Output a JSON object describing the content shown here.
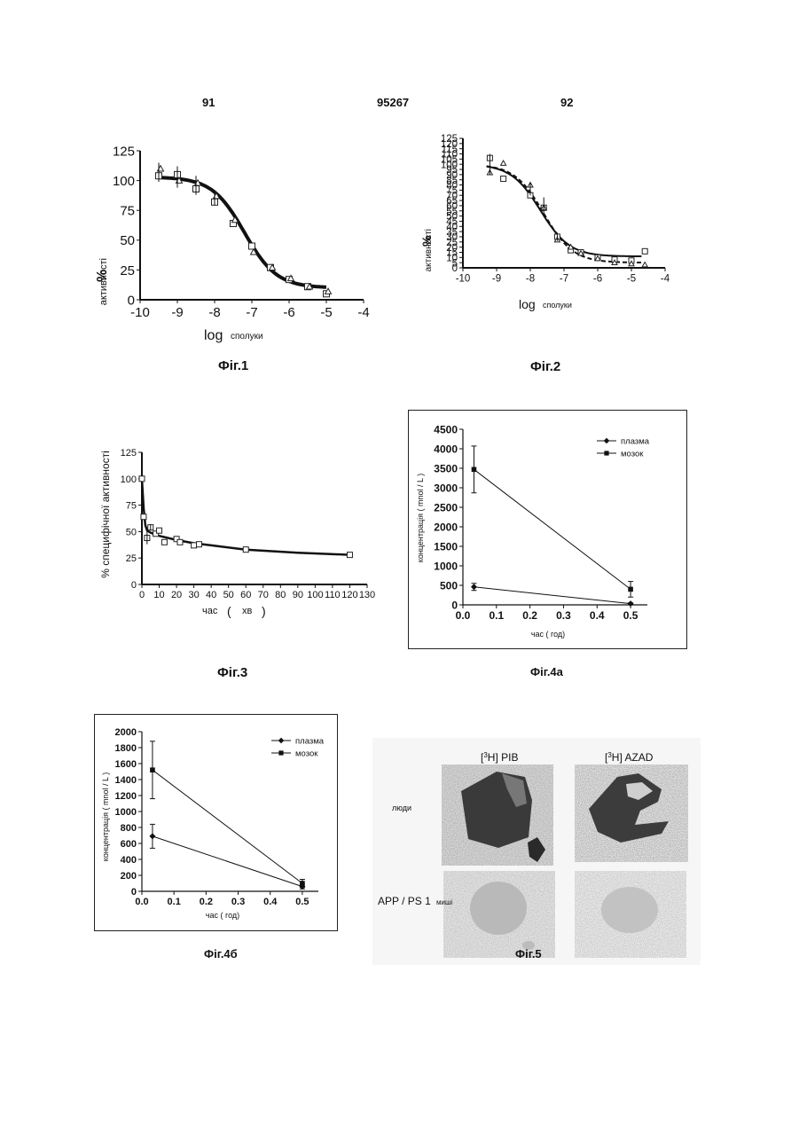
{
  "header": {
    "left": "91",
    "center": "95267",
    "right": "92"
  },
  "figures": {
    "fig1": {
      "caption": "Фіг.1"
    },
    "fig2": {
      "caption": "Фіг.2"
    },
    "fig3": {
      "caption": "Фіг.3"
    },
    "fig4a": {
      "caption": "Фіг.4а"
    },
    "fig4b": {
      "caption": "Фіг.4б"
    },
    "fig5": {
      "caption": "Фіг.5",
      "col_left": "[3H] PIB",
      "col_right": "[3H] AZAD",
      "row_top": "люди",
      "row_bottom": "APP / PS 1",
      "row_bottom_suffix": "миші"
    }
  },
  "chart_data": [
    {
      "id": "fig1",
      "type": "line",
      "ylabel_main": "%",
      "ylabel": "активності",
      "xlabel_main": "log",
      "xlabel": "сполуки",
      "xlim": [
        -10,
        -4
      ],
      "ylim": [
        0,
        125
      ],
      "xticks": [
        -10,
        -9,
        -8,
        -7,
        -6,
        -5,
        -4
      ],
      "yticks": [
        0,
        25,
        50,
        75,
        100,
        125
      ],
      "series": [
        {
          "marker": "square",
          "x": [
            -9.5,
            -9,
            -8.5,
            -8,
            -7.5,
            -7,
            -6.5,
            -6,
            -5.5,
            -5
          ],
          "y": [
            104,
            105,
            93,
            82,
            64,
            45,
            27,
            17,
            11,
            5
          ]
        },
        {
          "marker": "triangle",
          "x": [
            -9.5,
            -9,
            -8.5,
            -8,
            -7.5,
            -7,
            -6.5,
            -6,
            -5.5,
            -5
          ],
          "y": [
            110,
            100,
            98,
            87,
            67,
            40,
            27,
            18,
            11,
            7
          ]
        }
      ],
      "fit": {
        "top": 103,
        "bottom": 10,
        "logec50": -7.2,
        "hill": 1.0
      }
    },
    {
      "id": "fig2",
      "type": "line",
      "ylabel_main": "%",
      "ylabel": "активності",
      "xlabel_main": "log",
      "xlabel": "сполуки",
      "xlim": [
        -10,
        -4
      ],
      "ylim": [
        0,
        125
      ],
      "xticks": [
        -10,
        -9,
        -8,
        -7,
        -6,
        -5,
        -4
      ],
      "yticks": [
        0,
        5,
        10,
        15,
        20,
        25,
        30,
        35,
        40,
        45,
        50,
        55,
        60,
        65,
        70,
        75,
        80,
        85,
        90,
        95,
        100,
        105,
        110,
        115,
        120,
        125
      ],
      "series": [
        {
          "marker": "square",
          "x": [
            -9.2,
            -8.8,
            -8,
            -7.6,
            -7.2,
            -6.8,
            -6.5,
            -6,
            -5.5,
            -5,
            -4.6
          ],
          "y": [
            106,
            86,
            70,
            58,
            30,
            17,
            15,
            10,
            8,
            7,
            16
          ]
        },
        {
          "marker": "triangle",
          "x": [
            -9.2,
            -8.8,
            -8,
            -7.6,
            -7.2,
            -6.8,
            -6.5,
            -6,
            -5.5,
            -5,
            -4.6
          ],
          "y": [
            92,
            101,
            80,
            58,
            27,
            20,
            14,
            9,
            5,
            4,
            3
          ]
        }
      ],
      "fit_solid": {
        "top": 100,
        "bottom": 11,
        "logec50": -7.7,
        "hill": 1.0
      },
      "fit_dashed": {
        "top": 100,
        "bottom": 5,
        "logec50": -7.6,
        "hill": 1.0
      }
    },
    {
      "id": "fig3",
      "type": "line",
      "ylabel": "% специфічної активності",
      "xlabel": "час",
      "xlabel_unit": "хв",
      "xlim": [
        0,
        130
      ],
      "ylim": [
        0,
        125
      ],
      "xticks": [
        0,
        10,
        20,
        30,
        40,
        50,
        60,
        70,
        80,
        90,
        100,
        110,
        120,
        130
      ],
      "yticks": [
        0,
        25,
        50,
        75,
        100,
        125
      ],
      "series": [
        {
          "marker": "square",
          "x": [
            0,
            1,
            3,
            5,
            8,
            10,
            13,
            20,
            22,
            30,
            33,
            60,
            120
          ],
          "y": [
            100,
            64,
            44,
            54,
            48,
            51,
            40,
            43,
            40,
            37,
            38,
            33,
            28
          ]
        }
      ],
      "curve": {
        "x": [
          0,
          1,
          2,
          3,
          5,
          10,
          20,
          30,
          40,
          60,
          90,
          120
        ],
        "y": [
          100,
          72,
          56,
          51,
          49,
          46,
          42,
          39,
          37,
          33,
          30,
          28
        ]
      }
    },
    {
      "id": "fig4a",
      "type": "line",
      "ylabel": "концентрація ( mnol / L )",
      "xlabel": "час ( год)",
      "xlim": [
        0,
        0.55
      ],
      "ylim": [
        0,
        4500
      ],
      "xticks": [
        0.0,
        0.1,
        0.2,
        0.3,
        0.4,
        0.5
      ],
      "yticks": [
        0,
        500,
        1000,
        1500,
        2000,
        2500,
        3000,
        3500,
        4000,
        4500
      ],
      "legend": [
        "плазма",
        "мозок"
      ],
      "series": [
        {
          "name": "плазма",
          "marker": "diamond",
          "x": [
            0.033,
            0.5
          ],
          "y": [
            460,
            30
          ],
          "err": [
            90,
            20
          ]
        },
        {
          "name": "мозок",
          "marker": "square",
          "x": [
            0.033,
            0.5
          ],
          "y": [
            3470,
            400
          ],
          "err": [
            600,
            200
          ]
        }
      ]
    },
    {
      "id": "fig4b",
      "type": "line",
      "ylabel": "концентрація ( mnol / L )",
      "xlabel": "час ( год)",
      "xlim": [
        0,
        0.55
      ],
      "ylim": [
        0,
        2000
      ],
      "xticks": [
        0.0,
        0.1,
        0.2,
        0.3,
        0.4,
        0.5
      ],
      "yticks": [
        0,
        200,
        400,
        600,
        800,
        1000,
        1200,
        1400,
        1600,
        1800,
        2000
      ],
      "legend": [
        "плазма",
        "мозок"
      ],
      "series": [
        {
          "name": "плазма",
          "marker": "diamond",
          "x": [
            0.033,
            0.5
          ],
          "y": [
            690,
            60
          ],
          "err": [
            150,
            30
          ]
        },
        {
          "name": "мозок",
          "marker": "square",
          "x": [
            0.033,
            0.5
          ],
          "y": [
            1520,
            100
          ],
          "err": [
            360,
            50
          ]
        }
      ]
    }
  ]
}
